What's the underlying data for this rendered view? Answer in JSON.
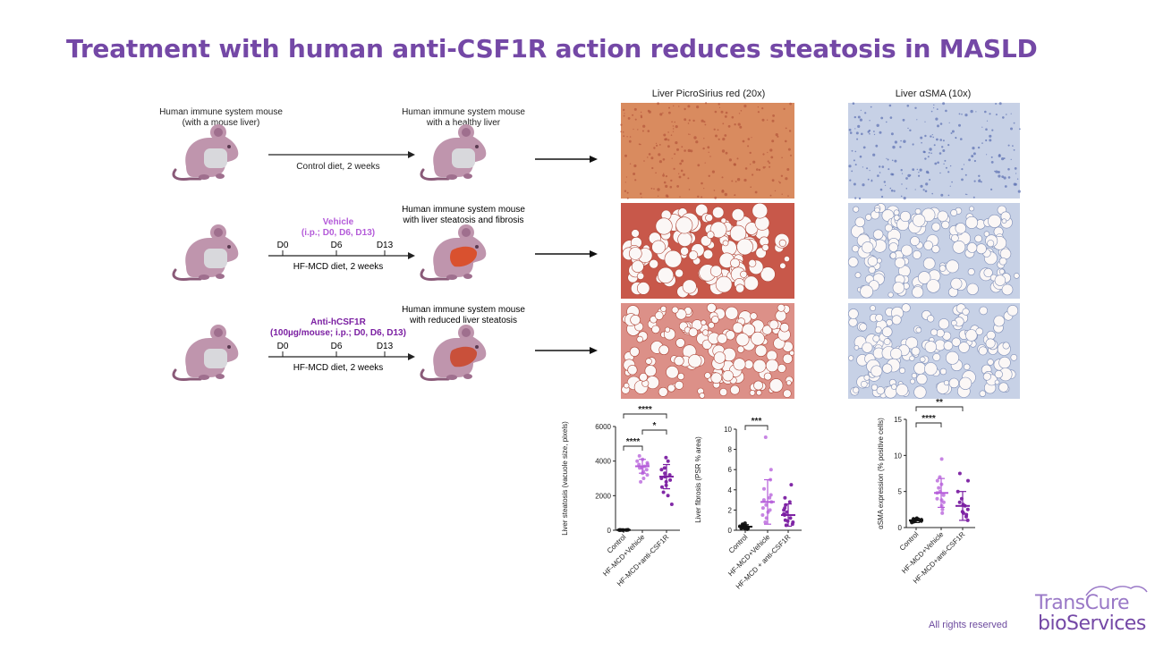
{
  "title": "Treatment with human anti-CSF1R action reduces steatosis in MASLD",
  "footer": {
    "rights": "All rights reserved"
  },
  "logo": {
    "line1": "TransCure",
    "line2": "bioServices"
  },
  "rows": [
    {
      "before": [
        "Human immune system mouse",
        "(with a mouse liver)"
      ],
      "after": [
        "Human immune system mouse",
        "with a healthy liver"
      ],
      "diet": "Control diet, 2 weeks",
      "treatment": [],
      "days": []
    },
    {
      "before": [],
      "after": [
        "Human immune system mouse",
        "with liver steatosis and fibrosis"
      ],
      "diet": "HF-MCD diet, 2 weeks",
      "treatment": [
        "Vehicle",
        "(i.p.; D0, D6, D13)"
      ],
      "days": [
        "D0",
        "D6",
        "D13"
      ]
    },
    {
      "before": [],
      "after": [
        "Human immune system mouse",
        "with reduced liver steatosis"
      ],
      "diet": "HF-MCD diet, 2 weeks",
      "treatment": [
        "Anti-hCSF1R",
        "(100µg/mouse; i.p.; D0, D6, D13)"
      ],
      "days": [
        "D0",
        "D6",
        "D13"
      ]
    }
  ],
  "histology": {
    "col1_title": "Liver PicroSirius red (20x)",
    "col2_title": "Liver αSMA (10x)"
  },
  "colors": {
    "title": "#7448a6",
    "vehicle": "#b45bd9",
    "antibody": "#7b1fa2",
    "mouse": "#bf95ad",
    "mouse_dark": "#8a5a78",
    "liver_diseased": "#d9512f",
    "liver_reduced": "#c9503a",
    "control": "#111111",
    "stain_red": "#c65a4a",
    "stain_blue": "#8fa4cc"
  },
  "chart_data": [
    {
      "type": "scatter",
      "ylabel": "Liver steatosis (vacuole size, pixels)",
      "categories": [
        "Control",
        "HF-MCD+Vehicle",
        "HF-MCD+anti-CSF1R"
      ],
      "ylim": [
        0,
        6000
      ],
      "yticks": [
        0,
        2000,
        4000,
        6000
      ],
      "series": [
        {
          "values": [
            10,
            15,
            20,
            5,
            12,
            18,
            8,
            25,
            14,
            9,
            16,
            11
          ],
          "mean": 15,
          "sd": 10
        },
        {
          "values": [
            4100,
            3800,
            3600,
            3200,
            4000,
            3500,
            3300,
            3900,
            3700,
            3400,
            4300,
            2800,
            3000,
            3600,
            3800
          ],
          "mean": 3700,
          "sd": 400
        },
        {
          "values": [
            3200,
            2900,
            3500,
            2600,
            4000,
            3100,
            2200,
            1500,
            3300,
            2800,
            3600,
            4200,
            2000,
            3000,
            2500
          ],
          "mean": 3100,
          "sd": 700
        }
      ],
      "significance": [
        {
          "pair": [
            0,
            2
          ],
          "label": "****"
        },
        {
          "pair": [
            1,
            2
          ],
          "label": "*"
        },
        {
          "pair": [
            0,
            1
          ],
          "label": "****"
        }
      ]
    },
    {
      "type": "scatter",
      "ylabel": "Liver fibrosis (PSR % area)",
      "categories": [
        "Control",
        "HF-MCD+Vehicle",
        "HF-MCD + anti-CSF1R"
      ],
      "ylim": [
        0,
        10
      ],
      "yticks": [
        0,
        2,
        4,
        6,
        8,
        10
      ],
      "series": [
        {
          "values": [
            0.2,
            0.4,
            0.3,
            0.6,
            0.1,
            0.5,
            0.3,
            0.2,
            0.4,
            0.7,
            0.3,
            0.2
          ],
          "mean": 0.35,
          "sd": 0.2
        },
        {
          "values": [
            1.5,
            2.8,
            3.5,
            5.0,
            9.2,
            2.0,
            1.2,
            4.1,
            3.0,
            2.5,
            6.0,
            1.8,
            2.2,
            3.2,
            0.8
          ],
          "mean": 2.8,
          "sd": 2.2
        },
        {
          "values": [
            0.5,
            1.2,
            1.8,
            2.5,
            0.8,
            1.5,
            2.0,
            3.2,
            4.5,
            1.0,
            0.6,
            2.8,
            1.6,
            0.9,
            2.2
          ],
          "mean": 1.5,
          "sd": 1.1
        }
      ],
      "significance": [
        {
          "pair": [
            0,
            1
          ],
          "label": "***"
        }
      ]
    },
    {
      "type": "scatter",
      "ylabel": "αSMA expression (% positive cells)",
      "categories": [
        "Control",
        "HF-MCD+Vehicle",
        "HF-MCD+anti-CSF1R"
      ],
      "ylim": [
        0,
        15
      ],
      "yticks": [
        0,
        5,
        10,
        15
      ],
      "series": [
        {
          "values": [
            0.8,
            1.0,
            1.2,
            0.9,
            1.1,
            0.7,
            1.3,
            1.0,
            0.9,
            1.2
          ],
          "mean": 1.0,
          "sd": 0.3
        },
        {
          "values": [
            3.0,
            4.5,
            6.5,
            9.5,
            2.5,
            3.8,
            5.5,
            7.0,
            2.0,
            4.0,
            5.0,
            3.5,
            6.0,
            4.8
          ],
          "mean": 4.8,
          "sd": 2.0
        },
        {
          "values": [
            1.5,
            2.0,
            3.0,
            5.0,
            7.5,
            2.5,
            1.0,
            4.0,
            3.5,
            6.5,
            2.2,
            1.8,
            3.2
          ],
          "mean": 3.0,
          "sd": 2.0
        }
      ],
      "significance": [
        {
          "pair": [
            0,
            2
          ],
          "label": "**"
        },
        {
          "pair": [
            0,
            1
          ],
          "label": "****"
        }
      ]
    }
  ]
}
